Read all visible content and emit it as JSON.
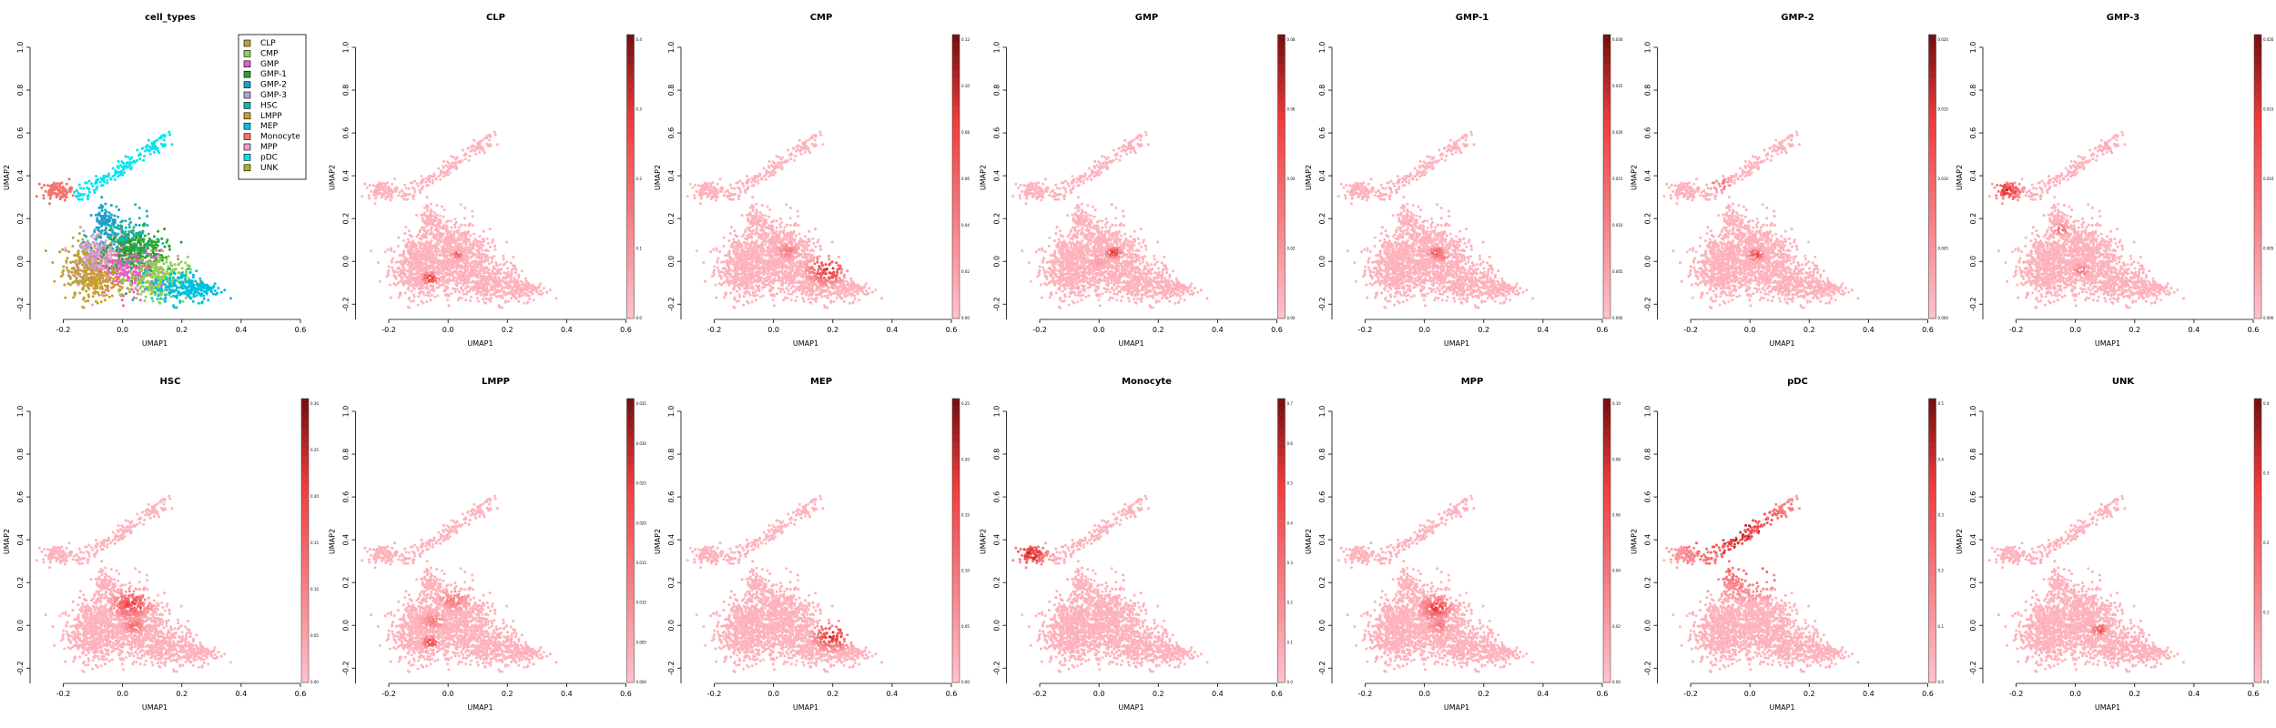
{
  "chart_data": {
    "type": "scatter",
    "xlabel": "UMAP1",
    "ylabel": "UMAP2",
    "xlim": [
      -0.3,
      0.6
    ],
    "ylim": [
      -0.25,
      1.0
    ],
    "xticks": [
      "-0.2",
      "0.0",
      "0.2",
      "0.4",
      "0.6"
    ],
    "yticks": [
      "-0.2",
      "0.0",
      "0.2",
      "0.4",
      "0.6",
      "0.8",
      "1.0"
    ],
    "grid": false,
    "colors": {
      "low": "#ffc0cb",
      "high": "#7a1010"
    },
    "first_panel": {
      "title": "cell_types",
      "legend_position": "top-right",
      "legend": [
        {
          "name": "CLP",
          "color": "#b8a23a"
        },
        {
          "name": "CMP",
          "color": "#8fd14f"
        },
        {
          "name": "GMP",
          "color": "#e45ec4"
        },
        {
          "name": "GMP-1",
          "color": "#2ca02c"
        },
        {
          "name": "GMP-2",
          "color": "#1f9ec9"
        },
        {
          "name": "GMP-3",
          "color": "#b9a0d6"
        },
        {
          "name": "HSC",
          "color": "#17b4b4"
        },
        {
          "name": "LMPP",
          "color": "#c8a02a"
        },
        {
          "name": "MEP",
          "color": "#00bfe0"
        },
        {
          "name": "Monocyte",
          "color": "#f2726b"
        },
        {
          "name": "MPP",
          "color": "#ee9ccc"
        },
        {
          "name": "pDC",
          "color": "#00e5ee"
        },
        {
          "name": "UNK",
          "color": "#b0b020"
        }
      ]
    },
    "panels": [
      {
        "title": "CLP",
        "cb_ticks": [
          "0.0",
          "0.1",
          "0.2",
          "0.3",
          "0.4"
        ],
        "hot": [
          [
            -0.06,
            -0.08,
            0.02,
            0.9
          ],
          [
            0.03,
            0.03,
            0.015,
            0.6
          ]
        ]
      },
      {
        "title": "CMP",
        "cb_ticks": [
          "0.00",
          "0.02",
          "0.04",
          "0.06",
          "0.08",
          "0.10",
          "0.12"
        ],
        "hot": [
          [
            0.18,
            -0.04,
            0.05,
            0.8
          ],
          [
            0.05,
            0.05,
            0.03,
            0.4
          ]
        ]
      },
      {
        "title": "GMP",
        "cb_ticks": [
          "0.00",
          "0.02",
          "0.04",
          "0.06",
          "0.08"
        ],
        "hot": [
          [
            0.05,
            0.04,
            0.02,
            0.8
          ],
          [
            0.0,
            0.0,
            0.03,
            0.2
          ]
        ]
      },
      {
        "title": "GMP-1",
        "cb_ticks": [
          "0.000",
          "0.005",
          "0.010",
          "0.015",
          "0.020",
          "0.025",
          "0.030"
        ],
        "hot": [
          [
            0.04,
            0.04,
            0.02,
            0.7
          ],
          [
            0.06,
            0.02,
            0.015,
            0.5
          ]
        ]
      },
      {
        "title": "GMP-2",
        "cb_ticks": [
          "0.000",
          "0.005",
          "0.010",
          "0.015",
          "0.020"
        ],
        "hot": [
          [
            0.02,
            0.03,
            0.02,
            0.7
          ],
          [
            -0.1,
            0.36,
            0.03,
            0.5
          ]
        ]
      },
      {
        "title": "GMP-3",
        "cb_ticks": [
          "0.000",
          "0.005",
          "0.010",
          "0.015",
          "0.020"
        ],
        "hot": [
          [
            -0.23,
            0.33,
            0.04,
            0.8
          ],
          [
            -0.05,
            0.15,
            0.02,
            0.6
          ],
          [
            0.02,
            -0.04,
            0.02,
            0.5
          ]
        ]
      },
      {
        "title": "HSC",
        "cb_ticks": [
          "0.00",
          "0.05",
          "0.10",
          "0.15",
          "0.20",
          "0.25",
          "0.30"
        ],
        "hot": [
          [
            0.03,
            0.1,
            0.05,
            0.7
          ],
          [
            0.04,
            0.0,
            0.03,
            0.5
          ]
        ]
      },
      {
        "title": "LMPP",
        "cb_ticks": [
          "0.000",
          "0.005",
          "0.010",
          "0.015",
          "0.020",
          "0.025",
          "0.030",
          "0.035"
        ],
        "hot": [
          [
            -0.06,
            -0.08,
            0.02,
            0.8
          ],
          [
            0.02,
            0.12,
            0.04,
            0.4
          ],
          [
            -0.05,
            0.02,
            0.03,
            0.4
          ]
        ]
      },
      {
        "title": "MEP",
        "cb_ticks": [
          "0.00",
          "0.05",
          "0.10",
          "0.15",
          "0.20",
          "0.25"
        ],
        "hot": [
          [
            0.2,
            -0.05,
            0.05,
            0.8
          ]
        ]
      },
      {
        "title": "Monocyte",
        "cb_ticks": [
          "0.0",
          "0.1",
          "0.2",
          "0.3",
          "0.4",
          "0.5",
          "0.6",
          "0.7"
        ],
        "hot": [
          [
            -0.23,
            0.33,
            0.05,
            0.85
          ]
        ]
      },
      {
        "title": "MPP",
        "cb_ticks": [
          "0.00",
          "0.02",
          "0.04",
          "0.06",
          "0.08",
          "0.10"
        ],
        "hot": [
          [
            0.04,
            0.08,
            0.04,
            0.7
          ],
          [
            0.05,
            0.0,
            0.03,
            0.4
          ]
        ]
      },
      {
        "title": "pDC",
        "cb_ticks": [
          "0.0",
          "0.1",
          "0.2",
          "0.3",
          "0.4",
          "0.5"
        ],
        "hot": [
          [
            0.0,
            0.4,
            0.18,
            0.85
          ]
        ]
      },
      {
        "title": "UNK",
        "cb_ticks": [
          "0.0",
          "0.1",
          "0.2",
          "0.3",
          "0.4"
        ],
        "hot": [
          [
            0.08,
            -0.02,
            0.02,
            0.7
          ]
        ]
      }
    ]
  }
}
